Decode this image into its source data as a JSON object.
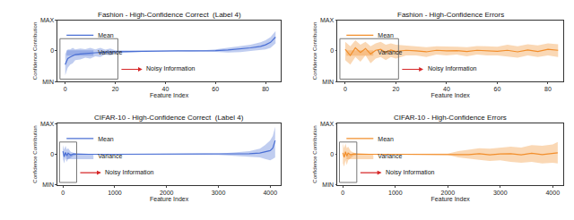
{
  "chart_data": [
    {
      "type": "line",
      "title": "Fashion - High-Confidence Correct  (Label 4)",
      "x_label": "Feature Index",
      "y_label": "Confidence Contribution",
      "legend": "upper left",
      "annotations": [
        "Noisy Information"
      ],
      "xlim": [
        -3,
        86
      ],
      "xticks": [
        0,
        20,
        40,
        60,
        80
      ],
      "ylim": [
        -1,
        1
      ],
      "yticks": [
        {
          "value": -1,
          "label": "MIN"
        },
        0,
        {
          "value": 1,
          "label": "MAX"
        }
      ],
      "x": [
        0,
        1,
        2,
        3,
        4,
        6,
        8,
        10,
        12,
        14,
        16,
        18,
        20,
        25,
        30,
        35,
        40,
        45,
        50,
        55,
        60,
        65,
        70,
        74,
        78,
        80,
        82,
        84
      ],
      "series": [
        {
          "name": "Mean",
          "color": "#4a6fd4",
          "values": [
            -0.45,
            -0.25,
            -0.2,
            -0.15,
            -0.12,
            -0.1,
            -0.08,
            -0.07,
            -0.06,
            -0.05,
            -0.04,
            -0.04,
            -0.03,
            -0.02,
            -0.01,
            0,
            0,
            0,
            0,
            0,
            0.01,
            0.03,
            0.06,
            0.1,
            0.15,
            0.2,
            0.28,
            0.45
          ]
        },
        {
          "name": "Variance",
          "color": "#4a6fd4",
          "lower": [
            -0.8,
            -0.55,
            -0.45,
            -0.4,
            -0.3,
            -0.28,
            -0.22,
            -0.25,
            -0.18,
            -0.2,
            -0.12,
            -0.15,
            -0.08,
            -0.05,
            -0.02,
            -0.01,
            -0.01,
            -0.01,
            -0.01,
            -0.02,
            -0.03,
            -0.05,
            -0.04,
            0,
            0.02,
            0.05,
            0.1,
            0.25
          ],
          "upper": [
            -0.1,
            0.05,
            0.05,
            0.1,
            0.05,
            0.08,
            0.06,
            0.1,
            0.05,
            0.1,
            0.04,
            0.08,
            0.02,
            0.01,
            0,
            0.01,
            0.01,
            0.01,
            0.02,
            0.02,
            0.05,
            0.1,
            0.15,
            0.2,
            0.28,
            0.35,
            0.45,
            0.65
          ]
        }
      ]
    },
    {
      "type": "line",
      "title": "Fashion - High-Confidence Errors",
      "x_label": "Feature Index",
      "y_label": "Confidence Contribution",
      "legend": "upper left",
      "annotations": [
        "Noisy Information"
      ],
      "xlim": [
        -3,
        86
      ],
      "xticks": [
        0,
        20,
        40,
        60,
        80
      ],
      "ylim": [
        -1,
        1
      ],
      "yticks": [
        {
          "value": -1,
          "label": "MIN"
        },
        0,
        {
          "value": 1,
          "label": "MAX"
        }
      ],
      "x": [
        0,
        2,
        4,
        6,
        8,
        10,
        12,
        14,
        16,
        18,
        20,
        24,
        28,
        32,
        36,
        40,
        44,
        48,
        52,
        56,
        60,
        64,
        68,
        72,
        76,
        80,
        84
      ],
      "series": [
        {
          "name": "Mean",
          "color": "#f28e2b",
          "values": [
            0.05,
            -0.15,
            0.1,
            -0.05,
            0.08,
            -0.1,
            0.02,
            0.05,
            -0.05,
            0.03,
            -0.02,
            0.02,
            0,
            -0.03,
            0.02,
            0,
            0.01,
            -0.02,
            0.02,
            0,
            -0.01,
            0.02,
            -0.03,
            0.03,
            -0.02,
            0.05,
            0.02
          ]
        },
        {
          "name": "Variance",
          "color": "#f28e2b",
          "lower": [
            -0.3,
            -0.45,
            -0.2,
            -0.35,
            -0.15,
            -0.4,
            -0.25,
            -0.2,
            -0.3,
            -0.2,
            -0.25,
            -0.15,
            -0.15,
            -0.2,
            -0.12,
            -0.15,
            -0.12,
            -0.18,
            -0.12,
            -0.15,
            -0.15,
            -0.18,
            -0.22,
            -0.15,
            -0.2,
            -0.15,
            -0.2
          ],
          "upper": [
            0.3,
            0.15,
            0.35,
            0.2,
            0.3,
            0.15,
            0.25,
            0.3,
            0.2,
            0.25,
            0.2,
            0.18,
            0.15,
            0.12,
            0.15,
            0.15,
            0.14,
            0.12,
            0.16,
            0.15,
            0.14,
            0.2,
            0.15,
            0.22,
            0.18,
            0.25,
            0.22
          ]
        }
      ]
    },
    {
      "type": "line",
      "title": "CIFAR-10 - High-Confidence Correct  (Label 4)",
      "x_label": "Feature Index",
      "y_label": "Confidence Contribution",
      "legend": "upper left",
      "annotations": [
        "Noisy Information"
      ],
      "xlim": [
        -100,
        4200
      ],
      "xticks": [
        0,
        1000,
        2000,
        3000,
        4000
      ],
      "ylim": [
        -1,
        1
      ],
      "yticks": [
        {
          "value": -1,
          "label": "MIN"
        },
        0,
        {
          "value": 1,
          "label": "MAX"
        }
      ],
      "x": [
        0,
        25,
        50,
        75,
        100,
        150,
        200,
        300,
        500,
        1000,
        1500,
        2000,
        2500,
        3000,
        3300,
        3600,
        3800,
        3900,
        4000,
        4050,
        4096
      ],
      "series": [
        {
          "name": "Mean",
          "color": "#4a6fd4",
          "values": [
            0.1,
            -0.08,
            0.06,
            -0.05,
            0.04,
            -0.03,
            0.01,
            0,
            0,
            0,
            0,
            0,
            0,
            0,
            0.01,
            0.02,
            0.04,
            0.07,
            0.12,
            0.2,
            0.45
          ]
        },
        {
          "name": "Variance",
          "color": "#4a6fd4",
          "lower": [
            -0.15,
            -0.3,
            -0.12,
            -0.25,
            -0.15,
            -0.12,
            -0.05,
            -0.01,
            -0.01,
            -0.01,
            -0.01,
            -0.01,
            -0.01,
            -0.02,
            -0.05,
            -0.08,
            -0.1,
            -0.15,
            -0.2,
            -0.15,
            -0.1
          ],
          "upper": [
            0.3,
            0.15,
            0.28,
            0.15,
            0.2,
            0.08,
            0.05,
            0.01,
            0.01,
            0.01,
            0.01,
            0.01,
            0.01,
            0.02,
            0.06,
            0.1,
            0.18,
            0.3,
            0.45,
            0.6,
            0.9
          ]
        }
      ]
    },
    {
      "type": "line",
      "title": "CIFAR-10 - High-Confidence Errors",
      "x_label": "Feature Index",
      "y_label": "Confidence Contribution",
      "legend": "upper left",
      "annotations": [
        "Noisy Information"
      ],
      "xlim": [
        -100,
        4200
      ],
      "xticks": [
        0,
        1000,
        2000,
        3000,
        4000
      ],
      "ylim": [
        -1,
        1
      ],
      "yticks": [
        {
          "value": -1,
          "label": "MIN"
        },
        0,
        {
          "value": 1,
          "label": "MAX"
        }
      ],
      "x": [
        0,
        25,
        50,
        75,
        100,
        150,
        200,
        300,
        500,
        1000,
        1500,
        2000,
        2200,
        2400,
        2600,
        2800,
        3000,
        3200,
        3400,
        3600,
        3800,
        4000,
        4096
      ],
      "series": [
        {
          "name": "Mean",
          "color": "#f28e2b",
          "values": [
            0.05,
            -0.1,
            0.08,
            -0.06,
            0.04,
            -0.02,
            0.01,
            0,
            0,
            0,
            0,
            0,
            0.01,
            -0.01,
            0.02,
            -0.02,
            0.01,
            0.02,
            -0.02,
            0.03,
            -0.01,
            0.02,
            0.05
          ]
        },
        {
          "name": "Variance",
          "color": "#f28e2b",
          "lower": [
            -0.3,
            -0.4,
            -0.2,
            -0.35,
            -0.2,
            -0.12,
            -0.05,
            -0.01,
            -0.01,
            -0.01,
            -0.01,
            -0.02,
            -0.1,
            -0.15,
            -0.18,
            -0.22,
            -0.2,
            -0.25,
            -0.28,
            -0.25,
            -0.3,
            -0.28,
            -0.3
          ],
          "upper": [
            0.35,
            0.2,
            0.35,
            0.2,
            0.25,
            0.1,
            0.06,
            0.01,
            0.01,
            0.01,
            0.01,
            0.02,
            0.1,
            0.15,
            0.2,
            0.18,
            0.22,
            0.25,
            0.22,
            0.3,
            0.28,
            0.32,
            0.4
          ]
        }
      ]
    }
  ]
}
